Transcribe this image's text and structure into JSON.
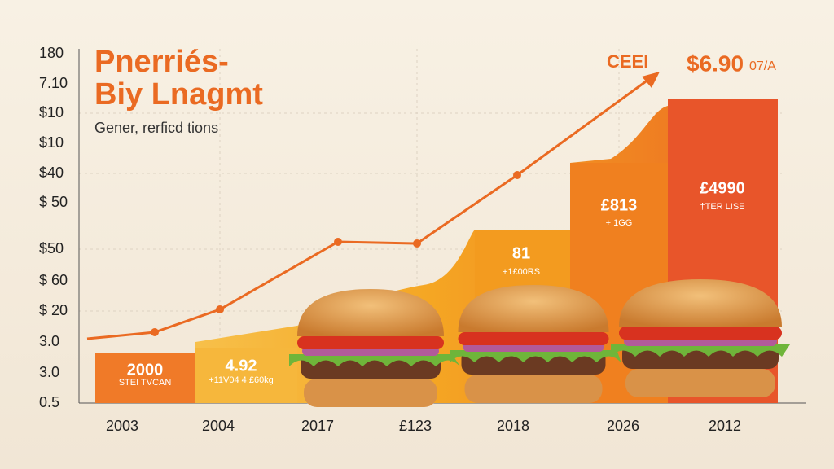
{
  "title": [
    "Pnerriés-",
    "Biy Lnagmt"
  ],
  "subtitle": "Gener, rerficd tions",
  "y_labels": [
    "180",
    "7.10",
    "$10",
    "$10",
    "$40",
    "$ 50",
    "$50",
    "$ 60",
    "$ 20",
    "3.0",
    "3.0",
    "0.5"
  ],
  "x_labels": [
    "2003",
    "2004",
    "2017",
    "£123",
    "2018",
    "2026",
    "2012"
  ],
  "bar_labels": [
    {
      "main": "2000",
      "sub": "STEI TVCAN"
    },
    {
      "main": "4.92",
      "sub": "+11V04 4 £60kg"
    },
    {
      "main": "81",
      "sub": "+1£00RS"
    },
    {
      "main": "£813",
      "sub": "+ 1GG"
    },
    {
      "main": "£4990",
      "sub": "†TER LISE"
    }
  ],
  "callout": "CEEI",
  "price": "$6.90",
  "price_suffix": "07/A"
}
